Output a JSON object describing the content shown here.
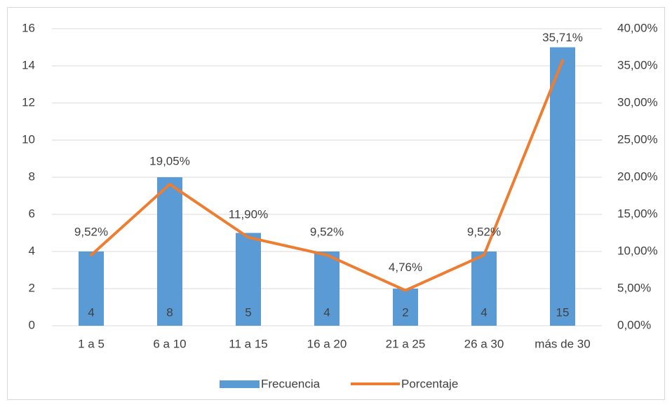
{
  "chart_data": {
    "type": "bar",
    "categories": [
      "1 a 5",
      "6 a 10",
      "11 a 15",
      "16 a 20",
      "21 a 25",
      "26 a 30",
      "más de 30"
    ],
    "series": [
      {
        "name": "Frecuencia",
        "type": "bar",
        "color": "#5b9bd5",
        "values": [
          4,
          8,
          5,
          4,
          2,
          4,
          15
        ]
      },
      {
        "name": "Porcentaje",
        "type": "line",
        "axis": "y2",
        "color": "#ed7d31",
        "values": [
          9.52,
          19.05,
          11.9,
          9.52,
          4.76,
          9.52,
          35.71
        ],
        "value_labels": [
          "9,52%",
          "19,05%",
          "11,90%",
          "9,52%",
          "4,76%",
          "9,52%",
          "35,71%"
        ]
      }
    ],
    "ylim": [
      0,
      16
    ],
    "yticks": [
      0,
      2,
      4,
      6,
      8,
      10,
      12,
      14,
      16
    ],
    "y2lim": [
      0,
      40
    ],
    "y2ticks": [
      {
        "value": 0,
        "label": "0,00%"
      },
      {
        "value": 5,
        "label": "5,00%"
      },
      {
        "value": 10,
        "label": "10,00%"
      },
      {
        "value": 15,
        "label": "15,00%"
      },
      {
        "value": 20,
        "label": "20,00%"
      },
      {
        "value": 25,
        "label": "25,00%"
      },
      {
        "value": 30,
        "label": "30,00%"
      },
      {
        "value": 35,
        "label": "35,00%"
      },
      {
        "value": 40,
        "label": "40,00%"
      }
    ],
    "grid": true,
    "legend": "bottom"
  }
}
